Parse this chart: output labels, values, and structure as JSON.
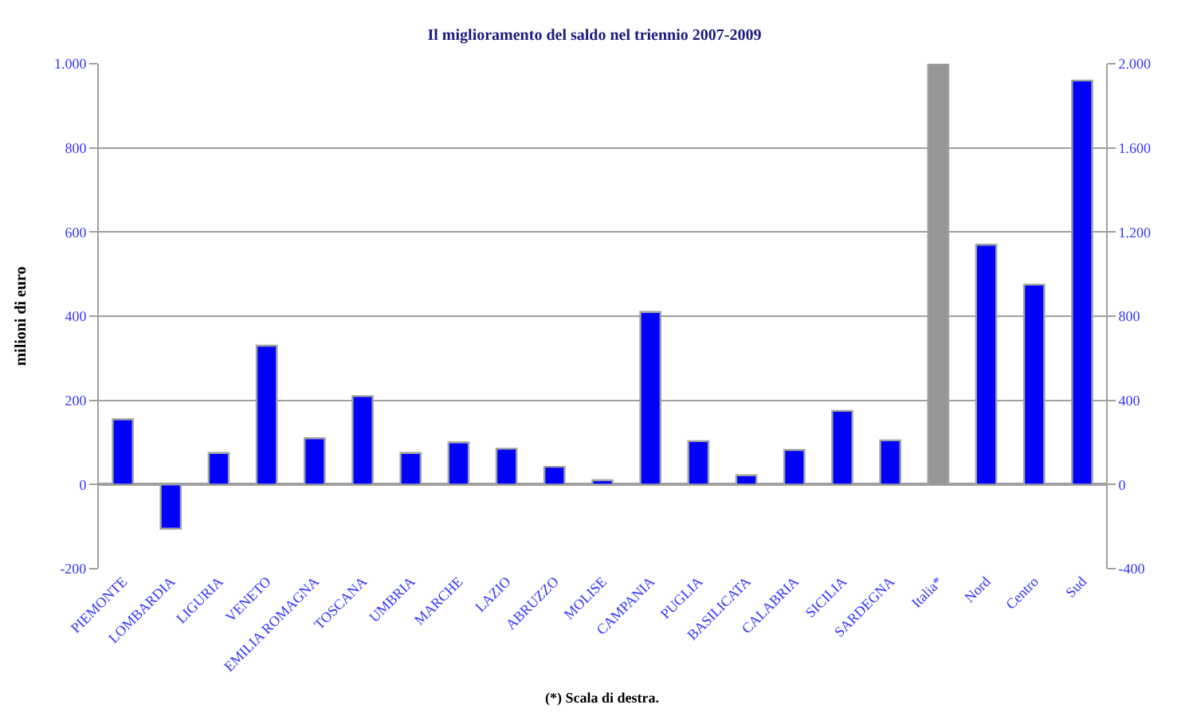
{
  "chart_data": {
    "type": "bar",
    "title": "Il miglioramento del saldo nel triennio 2007-2009",
    "ylabel": "milioni di euro",
    "categories": [
      "PIEMONTE",
      "LOMBARDIA",
      "LIGURIA",
      "VENETO",
      "EMILIA ROMAGNA",
      "TOSCANA",
      "UMBRIA",
      "MARCHE",
      "LAZIO",
      "ABRUZZO",
      "MOLISE",
      "CAMPANIA",
      "PUGLIA",
      "BASILICATA",
      "CALABRIA",
      "SICILIA",
      "SARDEGNA",
      "Italia*",
      "Nord",
      "Centro",
      "Sud"
    ],
    "series": [
      {
        "color": "#0000ff",
        "values": [
          155,
          -105,
          75,
          330,
          110,
          210,
          75,
          100,
          85,
          42,
          10,
          410,
          103,
          22,
          82,
          175,
          105,
          null,
          570,
          475,
          960
        ]
      },
      {
        "color": "#969696",
        "axis": "y2",
        "values": [
          null,
          null,
          null,
          null,
          null,
          null,
          null,
          null,
          null,
          null,
          null,
          null,
          null,
          null,
          null,
          null,
          null,
          2000,
          null,
          null,
          null
        ]
      }
    ],
    "ylim": [
      -200,
      1000
    ],
    "yticks": [
      -200,
      0,
      200,
      400,
      600,
      800,
      {
        "value": 1000,
        "label": "1.000"
      }
    ],
    "y2lim": [
      -400,
      2000
    ],
    "y2ticks": [
      -400,
      0,
      400,
      800,
      {
        "value": 1200,
        "label": "1.200"
      },
      {
        "value": 1600,
        "label": "1.600"
      },
      {
        "value": 2000,
        "label": "2.000"
      }
    ],
    "grid": "y",
    "annotations": [
      "(*) Scala di destra."
    ]
  }
}
